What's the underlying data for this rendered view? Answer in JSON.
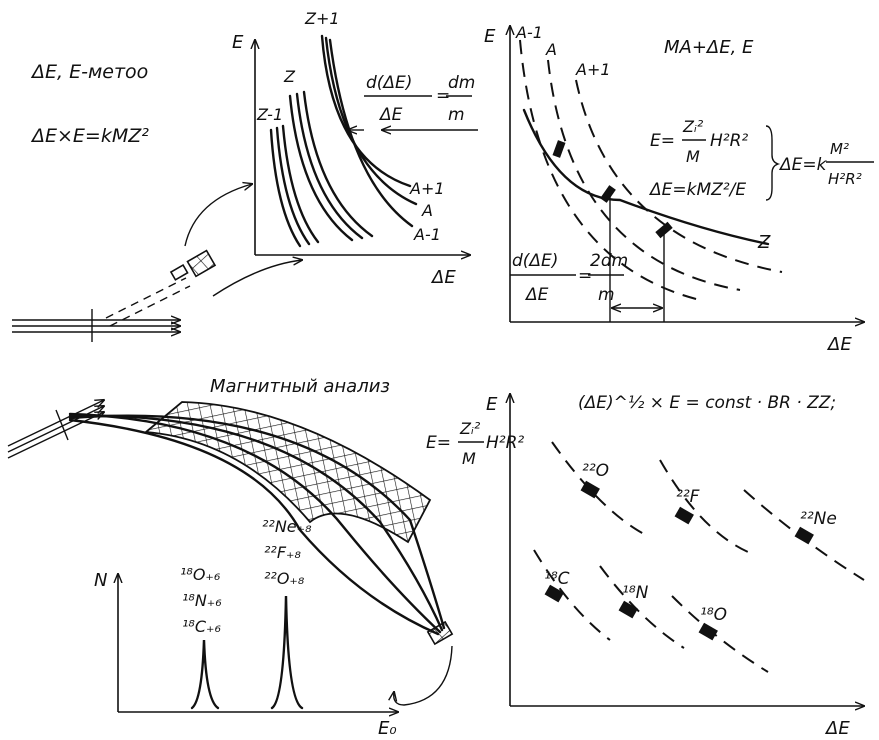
{
  "top_left": {
    "method_title": "ΔE, E-метоо",
    "relation": "ΔE×E=kMZ²",
    "axis_e": "E",
    "axis_de": "ΔE",
    "z_labels": [
      "Z-1",
      "Z",
      "Z+1"
    ],
    "a_labels": [
      "A+1",
      "A",
      "A-1"
    ],
    "resolution": {
      "num": "d(ΔE)",
      "den": "ΔE",
      "eq": "=",
      "rnum": "dm",
      "rden": "m"
    }
  },
  "top_right": {
    "title": "MA+ΔE, E",
    "axis_e": "E",
    "axis_de": "ΔE",
    "a_labels": [
      "A-1",
      "A",
      "A+1"
    ],
    "z_label": "Z",
    "eq1": {
      "lhs": "E=",
      "num": "Zᵢ²",
      "den": "M",
      "tail": "H²R²"
    },
    "eq2": "ΔE=kMZ²/E",
    "eq3": {
      "lhs": "ΔE=k",
      "num": "M²",
      "den": "H²R²"
    },
    "resolution": {
      "num": "d(ΔE)",
      "den": "ΔE",
      "eq": "=",
      "rnum": "2dm",
      "rden": "m"
    }
  },
  "bottom_left": {
    "title": "Магнитный анализ",
    "eq": {
      "lhs": "E=",
      "num": "Zᵢ²",
      "den": "M",
      "tail": "H²R²"
    },
    "axis_n": "N",
    "axis_e": "E₀",
    "peak1": [
      "¹⁸O₊₆",
      "¹⁸N₊₆",
      "¹⁸C₊₆"
    ],
    "peak2": [
      "²²Ne₊₈",
      "²²F₊₈",
      "²²O₊₈"
    ]
  },
  "bottom_right": {
    "title": "(ΔE)^½ × E = const · BR · ZZ;",
    "axis_e": "E",
    "axis_de": "ΔE",
    "isotopes": [
      "²²O",
      "²²F",
      "²²Ne",
      "¹⁸C",
      "¹⁸N",
      "¹⁸O"
    ]
  }
}
